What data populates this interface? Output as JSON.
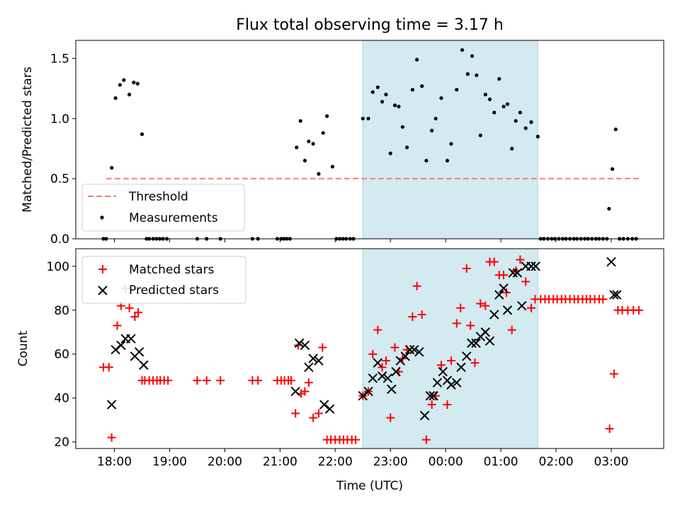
{
  "chart_data": {
    "title": "Flux total observing time = 3.17 h",
    "xlabel": "Time (UTC)",
    "x_ticks": [
      "18:00",
      "19:00",
      "20:00",
      "21:00",
      "22:00",
      "23:00",
      "00:00",
      "01:00",
      "02:00",
      "03:00"
    ],
    "x_range_hours": [
      17.3,
      27.95
    ],
    "shaded_interval": {
      "start": 22.5,
      "end": 25.67,
      "color": "#d3eaf0"
    },
    "panels": [
      {
        "type": "scatter",
        "ylabel": "Matched/Predicted stars",
        "ylim": [
          0,
          1.65
        ],
        "y_ticks": [
          "0.0",
          "0.5",
          "1.0",
          "1.5"
        ],
        "y_tick_values": [
          0,
          0.5,
          1.0,
          1.5
        ],
        "legend": {
          "placement": "bottom-left",
          "entries": [
            "Threshold",
            "Measurements"
          ]
        },
        "threshold": {
          "name": "Threshold",
          "y": 0.5,
          "x_start": 17.85,
          "x_end": 27.5,
          "color": "#f08080"
        },
        "series": [
          {
            "name": "Measurements",
            "color": "#000000",
            "x": [
              17.8,
              17.85,
              17.95,
              18.02,
              18.1,
              18.17,
              18.27,
              18.35,
              18.42,
              18.5,
              18.58,
              18.63,
              18.7,
              18.76,
              18.82,
              18.88,
              18.95,
              19.5,
              19.67,
              19.92,
              20.5,
              20.6,
              20.95,
              21.02,
              21.07,
              21.12,
              21.18,
              21.3,
              21.37,
              21.45,
              21.52,
              21.6,
              21.7,
              21.78,
              21.85,
              21.95,
              22.02,
              22.08,
              22.14,
              22.2,
              22.27,
              22.33,
              22.5,
              22.6,
              22.68,
              22.77,
              22.85,
              22.92,
              23.0,
              23.08,
              23.15,
              23.22,
              23.3,
              23.4,
              23.48,
              23.57,
              23.65,
              23.75,
              23.82,
              23.92,
              24.03,
              24.1,
              24.2,
              24.3,
              24.4,
              24.48,
              24.56,
              24.63,
              24.72,
              24.8,
              24.88,
              24.97,
              25.05,
              25.12,
              25.2,
              25.27,
              25.35,
              25.45,
              25.55,
              25.67,
              25.72,
              25.78,
              25.85,
              25.92,
              25.98,
              26.05,
              26.12,
              26.18,
              26.25,
              26.32,
              26.38,
              26.45,
              26.52,
              26.58,
              26.65,
              26.72,
              26.78,
              26.85,
              26.92,
              26.96,
              27.02,
              27.08,
              27.15,
              27.22,
              27.3,
              27.38,
              27.45
            ],
            "y": [
              0,
              0,
              0.59,
              1.17,
              1.28,
              1.32,
              1.2,
              1.3,
              1.29,
              0.87,
              0,
              0,
              0,
              0,
              0,
              0,
              0,
              0,
              0,
              0,
              0,
              0,
              0,
              0,
              0,
              0,
              0,
              0.76,
              0.98,
              0.65,
              0.81,
              0.79,
              0.54,
              0.88,
              1.02,
              0.6,
              0,
              0,
              0,
              0,
              0,
              0,
              1.0,
              1.0,
              1.22,
              1.26,
              1.14,
              1.2,
              0.71,
              1.11,
              1.1,
              0.93,
              0.76,
              1.24,
              1.49,
              1.27,
              0.65,
              0.9,
              1.0,
              1.17,
              0.65,
              0.79,
              1.24,
              1.57,
              1.37,
              1.52,
              1.36,
              0.86,
              1.2,
              1.16,
              1.05,
              1.33,
              1.1,
              1.12,
              0.75,
              0.98,
              1.05,
              0.92,
              0.97,
              0.85,
              0,
              0,
              0,
              0,
              0,
              0,
              0,
              0,
              0,
              0,
              0,
              0,
              0,
              0,
              0,
              0,
              0,
              0,
              0,
              0.25,
              0.58,
              0.91,
              0,
              0,
              0,
              0,
              0
            ]
          }
        ]
      },
      {
        "type": "scatter",
        "ylabel": "Count",
        "ylim": [
          17,
          108
        ],
        "y_ticks": [
          "20",
          "40",
          "60",
          "80",
          "100"
        ],
        "y_tick_values": [
          20,
          40,
          60,
          80,
          100
        ],
        "legend": {
          "placement": "top-left",
          "entries": [
            "Matched stars",
            "Predicted stars"
          ]
        },
        "series": [
          {
            "name": "Matched stars",
            "marker": "+",
            "color": "#ff0000",
            "x": [
              17.8,
              17.9,
              17.95,
              18.05,
              18.12,
              18.2,
              18.27,
              18.37,
              18.43,
              18.5,
              18.55,
              18.63,
              18.7,
              18.77,
              18.83,
              18.9,
              18.97,
              19.5,
              19.67,
              19.92,
              20.5,
              20.6,
              20.95,
              21.02,
              21.08,
              21.15,
              21.2,
              21.28,
              21.33,
              21.38,
              21.45,
              21.52,
              21.6,
              21.7,
              21.77,
              21.85,
              21.92,
              22.0,
              22.08,
              22.15,
              22.22,
              22.3,
              22.37,
              22.5,
              22.6,
              22.68,
              22.77,
              22.85,
              22.92,
              23.0,
              23.08,
              23.15,
              23.22,
              23.3,
              23.4,
              23.48,
              23.57,
              23.65,
              23.75,
              23.82,
              23.92,
              24.03,
              24.1,
              24.2,
              24.27,
              24.38,
              24.45,
              24.53,
              24.63,
              24.72,
              24.8,
              24.88,
              24.97,
              25.05,
              25.1,
              25.2,
              25.27,
              25.35,
              25.45,
              25.55,
              25.62,
              25.72,
              25.8,
              25.87,
              25.95,
              26.02,
              26.1,
              26.17,
              26.25,
              26.33,
              26.4,
              26.48,
              26.55,
              26.62,
              26.7,
              26.78,
              26.85,
              26.97,
              27.05,
              27.12,
              27.2,
              27.3,
              27.4,
              27.5
            ],
            "y": [
              54,
              54,
              22,
              73,
              82,
              90,
              81,
              77,
              79,
              48,
              48,
              48,
              48,
              48,
              48,
              48,
              48,
              48,
              48,
              48,
              48,
              48,
              48,
              48,
              48,
              48,
              48,
              33,
              64,
              42,
              43,
              47,
              31,
              33,
              63,
              21,
              21,
              21,
              21,
              21,
              21,
              21,
              21,
              41,
              43,
              60,
              71,
              54,
              57,
              31,
              63,
              52,
              58,
              62,
              77,
              91,
              78,
              21,
              37,
              41,
              55,
              37,
              57,
              74,
              81,
              99,
              73,
              56,
              83,
              82,
              102,
              102,
              96,
              96,
              88,
              71,
              98,
              103,
              93,
              81,
              85,
              85,
              85,
              85,
              85,
              85,
              85,
              85,
              85,
              85,
              85,
              85,
              85,
              85,
              85,
              85,
              85,
              26,
              51,
              80,
              80,
              80,
              80,
              80
            ]
          },
          {
            "name": "Predicted stars",
            "marker": "x",
            "color": "#000000",
            "x": [
              17.95,
              18.02,
              18.12,
              18.2,
              18.3,
              18.37,
              18.45,
              18.53,
              21.28,
              21.35,
              21.45,
              21.52,
              21.6,
              21.7,
              21.8,
              21.9,
              22.5,
              22.6,
              22.68,
              22.77,
              22.85,
              22.95,
              23.02,
              23.1,
              23.18,
              23.27,
              23.35,
              23.43,
              23.52,
              23.62,
              23.72,
              23.78,
              23.85,
              23.95,
              24.03,
              24.1,
              24.2,
              24.28,
              24.38,
              24.47,
              24.55,
              24.63,
              24.72,
              24.8,
              24.88,
              24.97,
              25.05,
              25.12,
              25.22,
              25.3,
              25.38,
              25.45,
              25.55,
              25.63,
              27.0,
              27.05,
              27.1
            ],
            "y": [
              37,
              62,
              64,
              67,
              67,
              59,
              61,
              55,
              43,
              65,
              64,
              54,
              58,
              57,
              37,
              35,
              41,
              43,
              49,
              56,
              50,
              49,
              44,
              52,
              57,
              59,
              62,
              62,
              61,
              32,
              41,
              41,
              47,
              52,
              48,
              46,
              47,
              54,
              59,
              65,
              65,
              68,
              70,
              66,
              78,
              87,
              90,
              80,
              97,
              97,
              82,
              100,
              100,
              100,
              102,
              87,
              87
            ]
          }
        ]
      }
    ]
  }
}
